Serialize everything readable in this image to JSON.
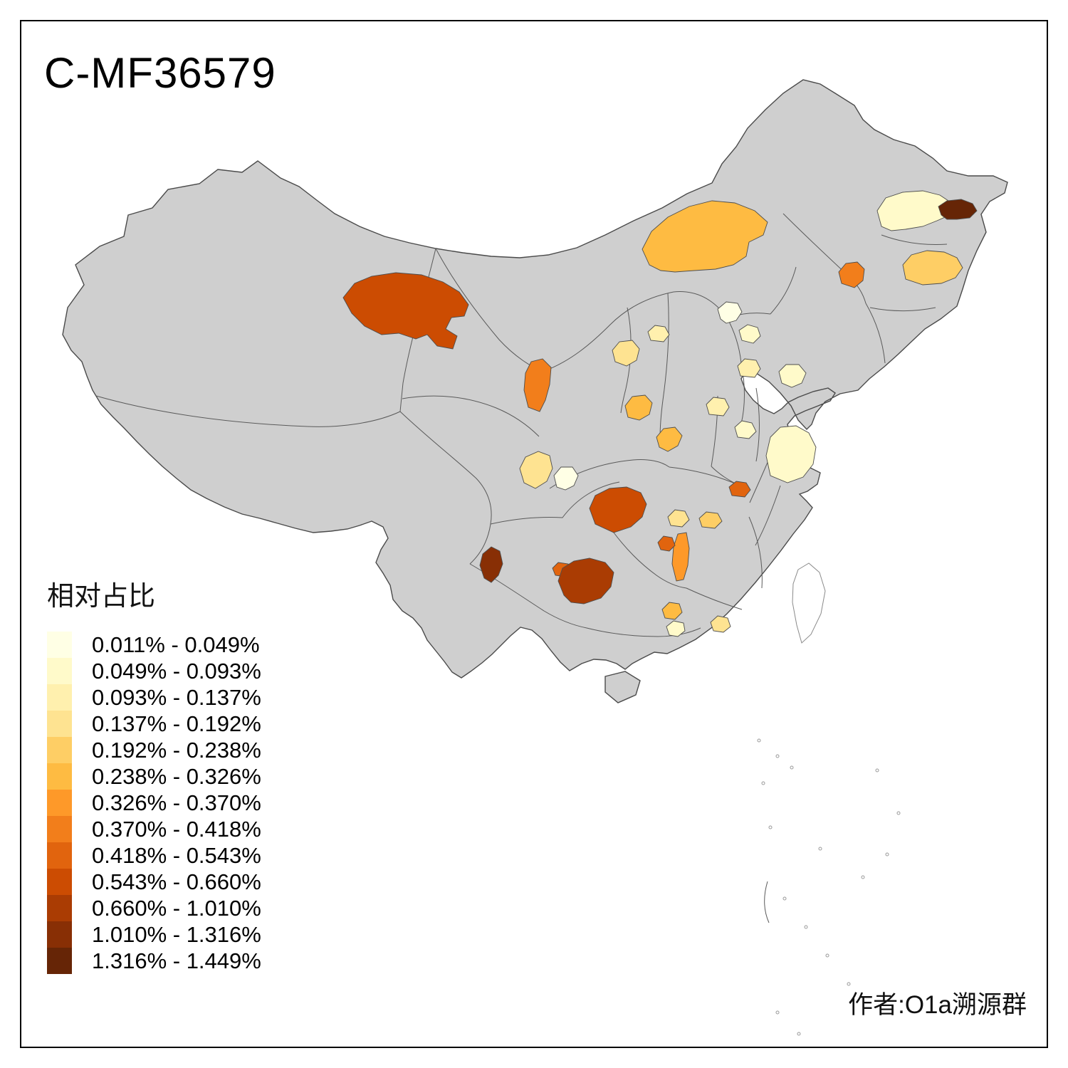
{
  "page": {
    "title": "C-MF36579",
    "attribution": "作者:O1a溯源群"
  },
  "legend": {
    "title": "相对占比"
  },
  "chart_data": {
    "type": "choropleth",
    "title": "C-MF36579",
    "area": "China prefecture-level map",
    "value_name": "相对占比",
    "legend_position": "bottom-left",
    "no_data_color": "#CFCFCF",
    "unclassified_island_color": "#FFFFFF",
    "class_breaks_percent": [
      0.011,
      0.049,
      0.093,
      0.137,
      0.192,
      0.238,
      0.326,
      0.37,
      0.418,
      0.543,
      0.66,
      1.01,
      1.316,
      1.449
    ],
    "classes": [
      {
        "label": "0.011% - 0.049%",
        "color": "#FFFFE5"
      },
      {
        "label": "0.049% - 0.093%",
        "color": "#FFFACA"
      },
      {
        "label": "0.093% - 0.137%",
        "color": "#FFF0AE"
      },
      {
        "label": "0.137% - 0.192%",
        "color": "#FEE391"
      },
      {
        "label": "0.192% - 0.238%",
        "color": "#FECE65"
      },
      {
        "label": "0.238% - 0.326%",
        "color": "#FEBB42"
      },
      {
        "label": "0.326% - 0.370%",
        "color": "#FE9929"
      },
      {
        "label": "0.370% - 0.418%",
        "color": "#F27E1B"
      },
      {
        "label": "0.418% - 0.543%",
        "color": "#E1640E"
      },
      {
        "label": "0.543% - 0.660%",
        "color": "#CC4C02"
      },
      {
        "label": "0.660% - 1.010%",
        "color": "#AA3C03"
      },
      {
        "label": "1.010% - 1.316%",
        "color": "#882F05"
      },
      {
        "label": "1.316% - 1.449%",
        "color": "#662506"
      }
    ],
    "regions": [
      {
        "id": "east-xinjiang",
        "class": 10
      },
      {
        "id": "inner-mongolia-central",
        "class": 6
      },
      {
        "id": "heilongjiang-west",
        "class": 2
      },
      {
        "id": "heilongjiang-east",
        "class": 13
      },
      {
        "id": "jilin-east",
        "class": 5
      },
      {
        "id": "liaoning-west",
        "class": 8
      },
      {
        "id": "beijing-area-a",
        "class": 1
      },
      {
        "id": "beijing-area-b",
        "class": 2
      },
      {
        "id": "hebei-south",
        "class": 3
      },
      {
        "id": "shanxi-central",
        "class": 4
      },
      {
        "id": "shaanxi-north",
        "class": 3
      },
      {
        "id": "shandong-west",
        "class": 2
      },
      {
        "id": "ningxia",
        "class": 8
      },
      {
        "id": "gansu-south",
        "class": 4
      },
      {
        "id": "shaanxi-central",
        "class": 6
      },
      {
        "id": "shaanxi-south",
        "class": 6
      },
      {
        "id": "henan-west",
        "class": 3
      },
      {
        "id": "henan-east",
        "class": 2
      },
      {
        "id": "jiangsu-anhui",
        "class": 2
      },
      {
        "id": "sichuan-north",
        "class": 1
      },
      {
        "id": "hubei-west",
        "class": 9
      },
      {
        "id": "chongqing",
        "class": 10
      },
      {
        "id": "hunan-west-strip",
        "class": 7
      },
      {
        "id": "hunan-north",
        "class": 4
      },
      {
        "id": "hunan-east",
        "class": 5
      },
      {
        "id": "hunan-small",
        "class": 9
      },
      {
        "id": "guizhou-west-small",
        "class": 9
      },
      {
        "id": "guizhou",
        "class": 11
      },
      {
        "id": "sichuan-south",
        "class": 12
      },
      {
        "id": "guangxi-north",
        "class": 6
      },
      {
        "id": "guangxi-south",
        "class": 2
      },
      {
        "id": "guangdong-north",
        "class": 4
      }
    ]
  }
}
